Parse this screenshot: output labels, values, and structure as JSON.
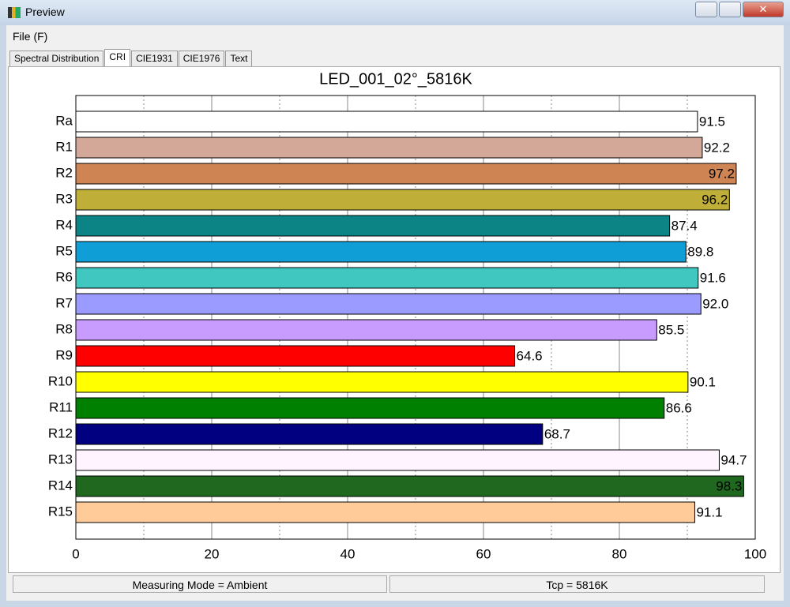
{
  "window": {
    "title": "Preview"
  },
  "menu": [
    "File (F)"
  ],
  "tabs": [
    "Spectral Distribution",
    "CRI",
    "CIE1931",
    "CIE1976",
    "Text"
  ],
  "selected_tab": 1,
  "chart_data": {
    "type": "hbar",
    "title": "LED_001_02°_5816K",
    "categories": [
      "Ra",
      "R1",
      "R2",
      "R3",
      "R4",
      "R5",
      "R6",
      "R7",
      "R8",
      "R9",
      "R10",
      "R11",
      "R12",
      "R13",
      "R14",
      "R15"
    ],
    "values": [
      91.5,
      92.2,
      97.2,
      96.2,
      87.4,
      89.8,
      91.6,
      92.0,
      85.5,
      64.6,
      90.1,
      86.6,
      68.7,
      94.7,
      98.3,
      91.1
    ],
    "value_labels": [
      "91.5",
      "92.2",
      "97.2",
      "96.2",
      "87.4",
      "89.8",
      "91.6",
      "92.0",
      "85.5",
      "64.6",
      "90.1",
      "86.6",
      "68.7",
      "94.7",
      "98.3",
      "91.1"
    ],
    "colors": [
      "#ffffff",
      "#d4a898",
      "#cf8454",
      "#bfae38",
      "#0c8486",
      "#109ed6",
      "#40c8c0",
      "#9b9bff",
      "#c89bff",
      "#ff0000",
      "#ffff00",
      "#008000",
      "#000080",
      "#fff4ff",
      "#206820",
      "#ffcc99"
    ],
    "xlim": [
      0,
      100
    ],
    "xticks": [
      0,
      20,
      40,
      60,
      80,
      100
    ],
    "xminor": [
      10,
      30,
      50,
      70,
      90
    ],
    "grid": true
  },
  "status": [
    "Measuring Mode = Ambient",
    "Tcp = 5816K"
  ]
}
